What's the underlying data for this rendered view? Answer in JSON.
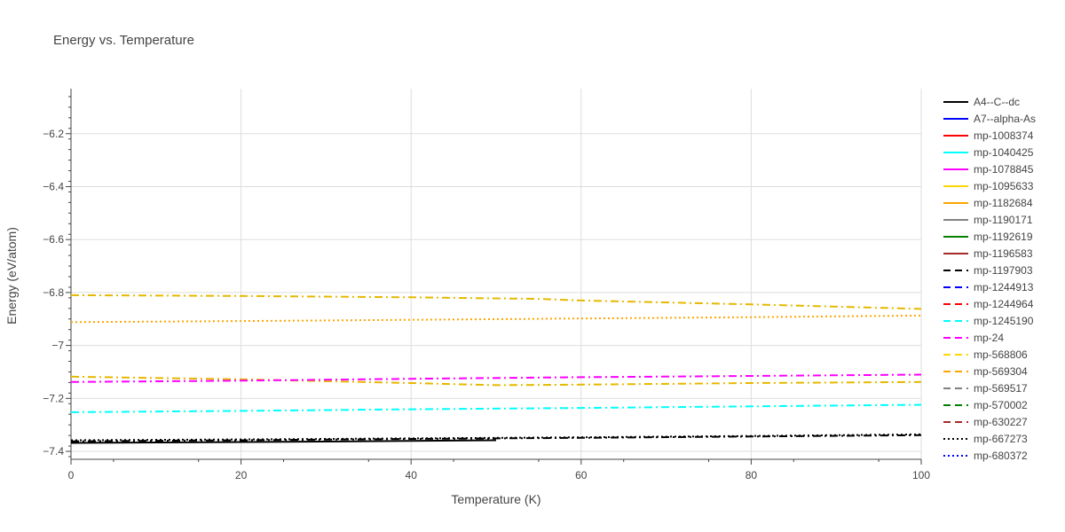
{
  "chart_data": {
    "type": "line",
    "title": "Energy vs. Temperature",
    "xlabel": "Temperature (K)",
    "ylabel": "Energy (eV/atom)",
    "xlim": [
      0,
      100
    ],
    "ylim": [
      -7.43,
      -6.03
    ],
    "x_ticks": [
      0,
      20,
      40,
      60,
      80,
      100
    ],
    "y_ticks": [
      -7.4,
      -7.2,
      -7.0,
      -6.8,
      -6.6,
      -6.4,
      -6.2
    ],
    "y_tick_labels": [
      "−7.4",
      "−7.2",
      "−7",
      "−6.8",
      "−6.6",
      "−6.4",
      "−6.2"
    ],
    "grid": true,
    "legend_position": "right",
    "series": [
      {
        "name": "A4--C--dc",
        "color": "#000000",
        "dash": "solid",
        "x": [
          0,
          25,
          50
        ],
        "y": [
          -7.368,
          -7.364,
          -7.358
        ]
      },
      {
        "name": "A7--alpha-As",
        "color": "#0000ff",
        "dash": "solid",
        "x": [],
        "y": []
      },
      {
        "name": "mp-1008374",
        "color": "#ff0000",
        "dash": "solid",
        "x": [],
        "y": []
      },
      {
        "name": "mp-1040425",
        "color": "#00ffff",
        "dash": "solid",
        "x": [],
        "y": []
      },
      {
        "name": "mp-1078845",
        "color": "#ff00ff",
        "dash": "solid",
        "x": [],
        "y": []
      },
      {
        "name": "mp-1095633",
        "color": "#ffd700",
        "dash": "solid",
        "x": [],
        "y": []
      },
      {
        "name": "mp-1182684",
        "color": "#ffa500",
        "dash": "solid",
        "x": [],
        "y": []
      },
      {
        "name": "mp-1190171",
        "color": "#808080",
        "dash": "solid",
        "x": [],
        "y": []
      },
      {
        "name": "mp-1192619",
        "color": "#008000",
        "dash": "solid",
        "x": [],
        "y": []
      },
      {
        "name": "mp-1196583",
        "color": "#a52a2a",
        "dash": "solid",
        "x": [],
        "y": []
      },
      {
        "name": "mp-1197903",
        "color": "#000000",
        "dash": "dash",
        "x": [],
        "y": []
      },
      {
        "name": "mp-1244913",
        "color": "#0000ff",
        "dash": "dash",
        "x": [],
        "y": []
      },
      {
        "name": "mp-1244964",
        "color": "#ff0000",
        "dash": "dash",
        "x": [],
        "y": []
      },
      {
        "name": "mp-1245190",
        "color": "#00ffff",
        "dash": "dash",
        "x": [],
        "y": []
      },
      {
        "name": "mp-24",
        "color": "#ff00ff",
        "dash": "dash",
        "x": [],
        "y": []
      },
      {
        "name": "mp-568806",
        "color": "#ffd700",
        "dash": "dash",
        "x": [],
        "y": []
      },
      {
        "name": "mp-569304",
        "color": "#ffa500",
        "dash": "dash",
        "x": [],
        "y": []
      },
      {
        "name": "mp-569517",
        "color": "#808080",
        "dash": "dash",
        "x": [],
        "y": []
      },
      {
        "name": "mp-570002",
        "color": "#008000",
        "dash": "dash",
        "x": [],
        "y": []
      },
      {
        "name": "mp-630227",
        "color": "#a52a2a",
        "dash": "dash",
        "x": [],
        "y": []
      },
      {
        "name": "mp-667273",
        "color": "#000000",
        "dash": "dot",
        "x": [
          0,
          20,
          40,
          60,
          80,
          100
        ],
        "y": [
          -7.358,
          -7.355,
          -7.351,
          -7.347,
          -7.342,
          -7.336
        ]
      },
      {
        "name": "mp-680372",
        "color": "#0000ff",
        "dash": "dot",
        "x": [],
        "y": []
      }
    ],
    "extra_curves": [
      {
        "color": "#e6b800",
        "dash": "dashdot",
        "x": [
          0,
          20,
          40,
          55,
          60,
          80,
          100
        ],
        "y": [
          -6.81,
          -6.813,
          -6.818,
          -6.824,
          -6.83,
          -6.845,
          -6.862
        ]
      },
      {
        "color": "#ffa500",
        "dash": "dot",
        "x": [
          0,
          20,
          40,
          60,
          80,
          100
        ],
        "y": [
          -6.912,
          -6.908,
          -6.903,
          -6.898,
          -6.893,
          -6.887
        ]
      },
      {
        "color": "#e6b800",
        "dash": "dashdot",
        "x": [
          0,
          20,
          40,
          50,
          60,
          80,
          100
        ],
        "y": [
          -7.118,
          -7.128,
          -7.142,
          -7.15,
          -7.148,
          -7.142,
          -7.138
        ]
      },
      {
        "color": "#ff00ff",
        "dash": "dashdot",
        "x": [
          0,
          20,
          40,
          60,
          80,
          100
        ],
        "y": [
          -7.138,
          -7.133,
          -7.126,
          -7.12,
          -7.115,
          -7.11
        ]
      },
      {
        "color": "#00ffff",
        "dash": "dashdot",
        "x": [
          0,
          20,
          40,
          60,
          80,
          100
        ],
        "y": [
          -7.252,
          -7.247,
          -7.241,
          -7.236,
          -7.23,
          -7.224
        ]
      },
      {
        "color": "#000000",
        "dash": "dashdot",
        "x": [
          0,
          20,
          40,
          60,
          80,
          100
        ],
        "y": [
          -7.362,
          -7.358,
          -7.353,
          -7.349,
          -7.344,
          -7.339
        ]
      }
    ]
  }
}
